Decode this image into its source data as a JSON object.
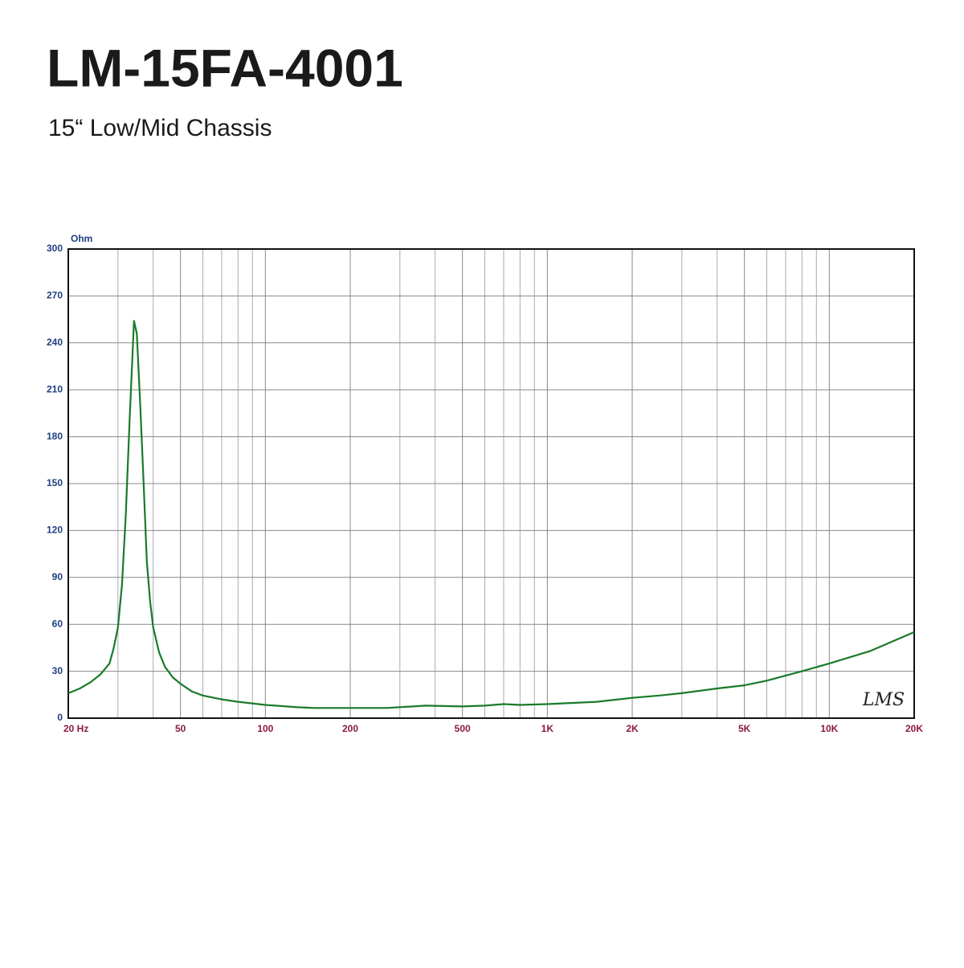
{
  "chart_data": {
    "type": "line",
    "title": "LM-15FA-4001",
    "subtitle": "15“ Low/Mid Chassis",
    "y_label": "Ohm",
    "annotation": "LMS",
    "color": "#1a7a2a",
    "log_x": true,
    "grid": true,
    "x": [
      20,
      22,
      24,
      26,
      28,
      29,
      30,
      31,
      32,
      33,
      34.2,
      35,
      36,
      37,
      38,
      39,
      40,
      42,
      44,
      47,
      50,
      55,
      60,
      70,
      80,
      100,
      130,
      150,
      200,
      270,
      370,
      500,
      600,
      700,
      800,
      1000,
      1500,
      2000,
      2500,
      3000,
      4000,
      5000,
      6000,
      8000,
      10000,
      14000,
      20000
    ],
    "values": [
      16,
      19,
      23,
      28,
      35,
      45,
      58,
      85,
      130,
      190,
      254,
      246,
      200,
      150,
      100,
      75,
      58,
      42,
      33,
      26,
      22,
      17,
      14.5,
      12,
      10.5,
      8.5,
      7,
      6.5,
      6.5,
      6.5,
      8,
      7.5,
      8,
      9,
      8.5,
      9,
      10.5,
      13,
      14.5,
      16,
      19,
      21,
      24,
      30,
      35,
      43,
      55
    ],
    "xlim": [
      20,
      20000
    ],
    "ylim": [
      0,
      300
    ],
    "yticks": [
      0,
      30,
      60,
      90,
      120,
      150,
      180,
      210,
      240,
      270,
      300
    ],
    "xticks": [
      {
        "value": 20,
        "label": "20  Hz"
      },
      50,
      100,
      200,
      500,
      {
        "value": 1000,
        "label": "1K"
      },
      {
        "value": 2000,
        "label": "2K"
      },
      {
        "value": 5000,
        "label": "5K"
      },
      {
        "value": 10000,
        "label": "10K"
      },
      {
        "value": 20000,
        "label": "20K"
      }
    ],
    "xgrid": [
      30,
      40,
      60,
      70,
      80,
      90,
      300,
      400,
      600,
      700,
      800,
      900,
      3000,
      4000,
      6000,
      7000,
      8000,
      9000
    ]
  }
}
